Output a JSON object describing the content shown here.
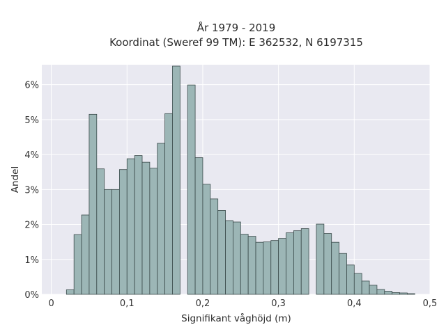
{
  "chart_data": {
    "type": "bar",
    "title_line1": "År 1979 - 2019",
    "title_line2": "Koordinat (Sweref 99 TM): E 362532, N 6197315",
    "xlabel": "Signifikant våghöjd (m)",
    "ylabel": "Andel",
    "xlim": [
      -0.0125,
      0.5
    ],
    "ylim": [
      0,
      0.0657
    ],
    "xticks": [
      0,
      0.1,
      0.2,
      0.3,
      0.4,
      0.5
    ],
    "xtick_labels": [
      "0",
      "0,1",
      "0,2",
      "0,3",
      "0,4",
      "0,5"
    ],
    "yticks": [
      0,
      0.01,
      0.02,
      0.03,
      0.04,
      0.05,
      0.06
    ],
    "ytick_labels": [
      "0%",
      "1%",
      "2%",
      "3%",
      "4%",
      "5%",
      "6%"
    ],
    "grid": true,
    "bin_width": 0.01,
    "bins_start": [
      0.02,
      0.03,
      0.04,
      0.05,
      0.06,
      0.07,
      0.08,
      0.09,
      0.1,
      0.11,
      0.12,
      0.13,
      0.14,
      0.15,
      0.16,
      0.17,
      0.18,
      0.19,
      0.2,
      0.21,
      0.22,
      0.23,
      0.24,
      0.25,
      0.26,
      0.27,
      0.28,
      0.29,
      0.3,
      0.31,
      0.32,
      0.33,
      0.34,
      0.35,
      0.36,
      0.37,
      0.38,
      0.39,
      0.4,
      0.41,
      0.42,
      0.43,
      0.44,
      0.45,
      0.46,
      0.47
    ],
    "values": [
      0.0013,
      0.0171,
      0.0227,
      0.0515,
      0.0359,
      0.03,
      0.03,
      0.0357,
      0.0388,
      0.0397,
      0.0378,
      0.0361,
      0.0432,
      0.0517,
      0.0653,
      0,
      0.0599,
      0.0391,
      0.0315,
      0.0273,
      0.024,
      0.0211,
      0.0207,
      0.0172,
      0.0166,
      0.0149,
      0.015,
      0.0154,
      0.016,
      0.0176,
      0.0182,
      0.0188,
      0,
      0.0201,
      0.0174,
      0.0149,
      0.0117,
      0.0084,
      0.006,
      0.0038,
      0.0026,
      0.0014,
      0.0009,
      0.0005,
      0.0004,
      0.0002
    ],
    "bar_color": "#9cb6b6",
    "edge_color": "#3a4a4a",
    "plot_bg": "#e9e9f1",
    "grid_color": "#ffffff"
  }
}
